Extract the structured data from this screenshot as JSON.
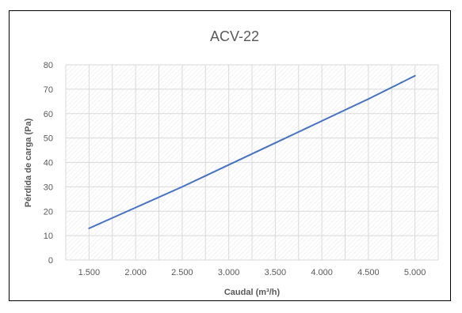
{
  "chart_data": {
    "type": "line",
    "title": "ACV-22",
    "xlabel": "Caudal (m³/h)",
    "ylabel": "Pérdida de carga (Pa)",
    "x": [
      1500,
      2000,
      2500,
      3000,
      3500,
      4000,
      4500,
      5000
    ],
    "series": [
      {
        "values": [
          13,
          21.5,
          30,
          39,
          48,
          57,
          66,
          75.5
        ]
      }
    ],
    "xlim": [
      1250,
      5250
    ],
    "ylim": [
      0,
      80
    ],
    "xticks": [
      "1.500",
      "2.000",
      "2.500",
      "3.000",
      "3.500",
      "4.000",
      "4.500",
      "5.000"
    ],
    "yticks": [
      "0",
      "10",
      "20",
      "30",
      "40",
      "50",
      "60",
      "70",
      "80"
    ],
    "grid": true,
    "line_color": "#4472C4",
    "grid_color": "#D9D9D9",
    "text_color": "#595959"
  }
}
